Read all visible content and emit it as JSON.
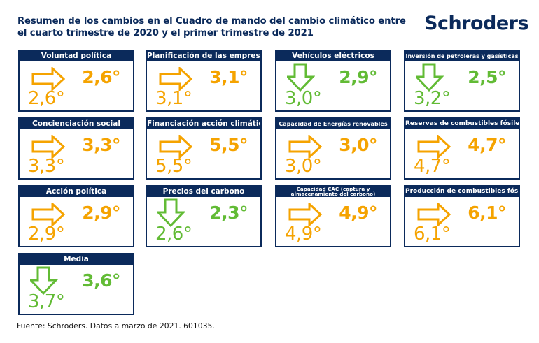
{
  "header": {
    "title_line1": "Resumen de los cambios en el Cuadro de mando del cambio climático entre",
    "title_line2": "el cuarto trimestre de 2020 y el primer trimestre de 2021",
    "logo": "Schroders"
  },
  "colors": {
    "navy": "#0b2a5b",
    "stable": "#f5a300",
    "improved": "#62bb35"
  },
  "cards": [
    {
      "title": "Voluntad política",
      "value": "2,6°",
      "previous": "2,6°",
      "trend": "right"
    },
    {
      "title": "Planificación de las empresas",
      "value": "3,1°",
      "previous": "3,1°",
      "trend": "right"
    },
    {
      "title": "Vehículos eléctricos",
      "value": "2,9°",
      "previous": "3,0°",
      "trend": "down"
    },
    {
      "title": "Inversión de petroleras y gasísticas",
      "value": "2,5°",
      "previous": "3,2°",
      "trend": "down"
    },
    {
      "title": "Concienciación social",
      "value": "3,3°",
      "previous": "3,3°",
      "trend": "right"
    },
    {
      "title": "Financiación acción climática",
      "value": "5,5°",
      "previous": "5,5°",
      "trend": "right"
    },
    {
      "title": "Capacidad de Energías renovables",
      "value": "3,0°",
      "previous": "3,0°",
      "trend": "right"
    },
    {
      "title": "Reservas de combustibles fósiles",
      "value": "4,7°",
      "previous": "4,7°",
      "trend": "right"
    },
    {
      "title": "Acción política",
      "value": "2,9°",
      "previous": "2,9°",
      "trend": "right"
    },
    {
      "title": "Precios del carbono",
      "value": "2,3°",
      "previous": "2,6°",
      "trend": "down"
    },
    {
      "title": "Capacidad CAC (captura y almacenamiento del carbono)",
      "title_line1": "Capacidad CAC (captura y",
      "title_line2": "almacenamiento del carbono)",
      "value": "4,9°",
      "previous": "4,9°",
      "trend": "right"
    },
    {
      "title": "Producción de combustibles fósiles",
      "value": "6,1°",
      "previous": "6,1°",
      "trend": "right"
    },
    {
      "title": "Media",
      "value": "3,6°",
      "previous": "3,7°",
      "trend": "down"
    }
  ],
  "footer": "Fuente: Schroders. Datos a marzo de 2021. 601035."
}
